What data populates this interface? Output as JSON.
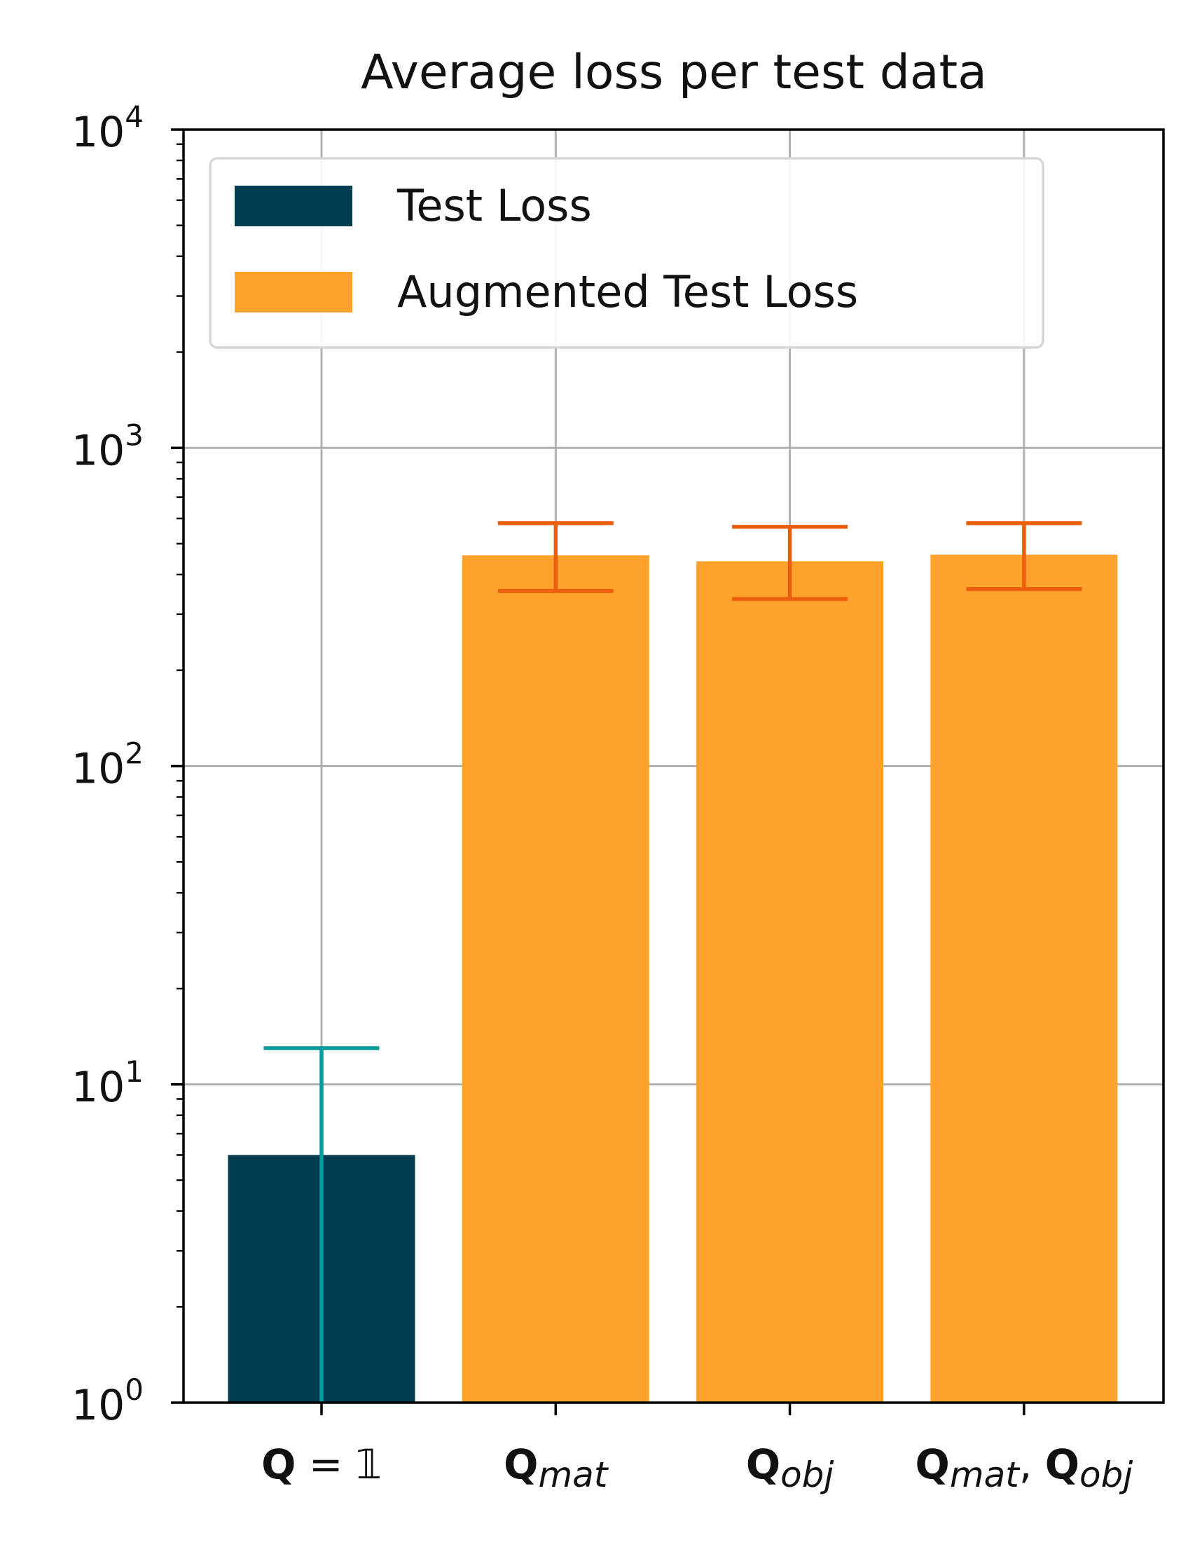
{
  "chart_data": {
    "type": "bar",
    "title": "Average loss per test data",
    "xlabel": "",
    "ylabel": "",
    "yscale": "log",
    "ylim": [
      1,
      10000
    ],
    "grid": true,
    "legend_position": "top-left",
    "y_ticks": [
      {
        "value": 1,
        "base": "10",
        "exp": "0"
      },
      {
        "value": 10,
        "base": "10",
        "exp": "1"
      },
      {
        "value": 100,
        "base": "10",
        "exp": "2"
      },
      {
        "value": 1000,
        "base": "10",
        "exp": "3"
      },
      {
        "value": 10000,
        "base": "10",
        "exp": "4"
      }
    ],
    "categories": [
      {
        "main": "Q",
        "sub": "",
        "suffix": " = 𝟙"
      },
      {
        "main": "Q",
        "sub": "mat",
        "suffix": ""
      },
      {
        "main": "Q",
        "sub": "obj",
        "suffix": ""
      },
      {
        "main": "Q",
        "sub": "mat",
        "suffix": ", ",
        "main2": "Q",
        "sub2": "obj"
      }
    ],
    "series": [
      {
        "name": "Test Loss",
        "color": "#023e4f",
        "error_color": "#009a9a",
        "index": 0
      },
      {
        "name": "Augmented Test Loss",
        "color": "#fea22d",
        "error_color": "#ec5e0b",
        "index": 1
      }
    ],
    "bars": [
      {
        "category": 0,
        "series": 0,
        "value": 6.0,
        "err_low": 1.0,
        "err_high": 13.0
      },
      {
        "category": 1,
        "series": 1,
        "value": 460,
        "err_low": 355,
        "err_high": 580
      },
      {
        "category": 2,
        "series": 1,
        "value": 440,
        "err_low": 335,
        "err_high": 565
      },
      {
        "category": 3,
        "series": 1,
        "value": 462,
        "err_low": 360,
        "err_high": 580
      }
    ]
  }
}
